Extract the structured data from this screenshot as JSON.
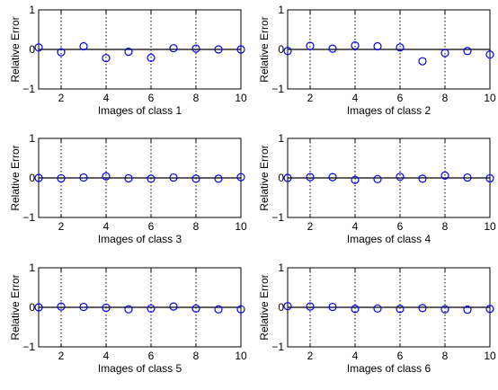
{
  "chart_data": [
    {
      "type": "scatter",
      "xlabel": "Images of class 1",
      "ylabel": "Relative Error",
      "xlim": [
        1,
        10
      ],
      "ylim": [
        -1,
        1
      ],
      "xticks": [
        2,
        4,
        6,
        8,
        10
      ],
      "yticks": [
        -1,
        0,
        1
      ],
      "grid": "vertical dotted at x ticks",
      "reference_line": 0,
      "x": [
        1,
        2,
        3,
        4,
        5,
        6,
        7,
        8,
        9,
        10
      ],
      "values": [
        0.05,
        -0.07,
        0.08,
        -0.22,
        -0.06,
        -0.21,
        0.03,
        0.02,
        0.0,
        0.0
      ]
    },
    {
      "type": "scatter",
      "xlabel": "Images of class 2",
      "ylabel": "Relative Error",
      "xlim": [
        1,
        10
      ],
      "ylim": [
        -1,
        1
      ],
      "xticks": [
        2,
        4,
        6,
        8,
        10
      ],
      "yticks": [
        -1,
        0,
        1
      ],
      "grid": "vertical dotted at x ticks",
      "reference_line": 0,
      "x": [
        1,
        2,
        3,
        4,
        5,
        6,
        7,
        8,
        9,
        10
      ],
      "values": [
        -0.04,
        0.09,
        0.02,
        0.1,
        0.08,
        0.05,
        -0.3,
        -0.09,
        -0.04,
        -0.13
      ]
    },
    {
      "type": "scatter",
      "xlabel": "Images of class 3",
      "ylabel": "Relative Error",
      "xlim": [
        1,
        10
      ],
      "ylim": [
        -1,
        1
      ],
      "xticks": [
        2,
        4,
        6,
        8,
        10
      ],
      "yticks": [
        -1,
        0,
        1
      ],
      "grid": "vertical dotted at x ticks",
      "reference_line": 0,
      "x": [
        1,
        2,
        3,
        4,
        5,
        6,
        7,
        8,
        9,
        10
      ],
      "values": [
        0.0,
        -0.01,
        0.01,
        0.04,
        -0.01,
        -0.02,
        0.01,
        -0.02,
        -0.02,
        0.02
      ]
    },
    {
      "type": "scatter",
      "xlabel": "Images of class 4",
      "ylabel": "Relative Error",
      "xlim": [
        1,
        10
      ],
      "ylim": [
        -1,
        1
      ],
      "xticks": [
        2,
        4,
        6,
        8,
        10
      ],
      "yticks": [
        -1,
        0,
        1
      ],
      "grid": "vertical dotted at x ticks",
      "reference_line": 0,
      "x": [
        1,
        2,
        3,
        4,
        5,
        6,
        7,
        8,
        9,
        10
      ],
      "values": [
        0.0,
        0.02,
        0.02,
        -0.05,
        -0.03,
        0.03,
        -0.02,
        0.06,
        0.01,
        -0.01
      ]
    },
    {
      "type": "scatter",
      "xlabel": "Images of class 5",
      "ylabel": "Relative Error",
      "xlim": [
        1,
        10
      ],
      "ylim": [
        -1,
        1
      ],
      "xticks": [
        2,
        4,
        6,
        8,
        10
      ],
      "yticks": [
        -1,
        0,
        1
      ],
      "grid": "vertical dotted at x ticks",
      "reference_line": 0,
      "x": [
        1,
        2,
        3,
        4,
        5,
        6,
        7,
        8,
        9,
        10
      ],
      "values": [
        0.0,
        0.02,
        0.01,
        -0.01,
        -0.05,
        -0.03,
        0.02,
        -0.03,
        -0.05,
        -0.05
      ]
    },
    {
      "type": "scatter",
      "xlabel": "Images of class 6",
      "ylabel": "Relative Error",
      "xlim": [
        1,
        10
      ],
      "ylim": [
        -1,
        1
      ],
      "xticks": [
        2,
        4,
        6,
        8,
        10
      ],
      "yticks": [
        -1,
        0,
        1
      ],
      "grid": "vertical dotted at x ticks",
      "reference_line": 0,
      "x": [
        1,
        2,
        3,
        4,
        5,
        6,
        7,
        8,
        9,
        10
      ],
      "values": [
        0.03,
        0.02,
        0.01,
        -0.04,
        -0.03,
        -0.04,
        -0.02,
        -0.05,
        -0.06,
        -0.04
      ]
    }
  ],
  "colors": {
    "marker": "#0000ff",
    "axes": "#000000",
    "grid": "#000000",
    "background": "#ffffff"
  }
}
